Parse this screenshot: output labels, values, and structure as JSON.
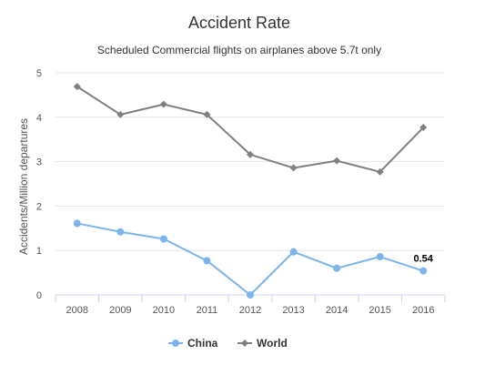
{
  "chart_data": {
    "type": "line",
    "title": "Accident Rate",
    "subtitle": "Scheduled Commercial flights on airplanes above 5.7t only",
    "ylabel": "Accidents/Million departures",
    "xlabel": "",
    "categories": [
      "2008",
      "2009",
      "2010",
      "2011",
      "2012",
      "2013",
      "2014",
      "2015",
      "2016"
    ],
    "ylim": [
      0,
      5
    ],
    "yticks": [
      "0",
      "1",
      "2",
      "3",
      "4",
      "5"
    ],
    "grid": true,
    "legend_position": "bottom-center",
    "series": [
      {
        "name": "China",
        "color": "#7cb5ec",
        "marker": "circle",
        "values": [
          1.61,
          1.42,
          1.26,
          0.77,
          0.0,
          0.97,
          0.6,
          0.86,
          0.54
        ]
      },
      {
        "name": "World",
        "color": "#808080",
        "marker": "diamond",
        "values": [
          4.69,
          4.06,
          4.29,
          4.06,
          3.16,
          2.86,
          3.02,
          2.77,
          3.77
        ]
      }
    ],
    "data_labels": [
      {
        "series": "China",
        "category": "2016",
        "text": "0.54"
      }
    ]
  }
}
